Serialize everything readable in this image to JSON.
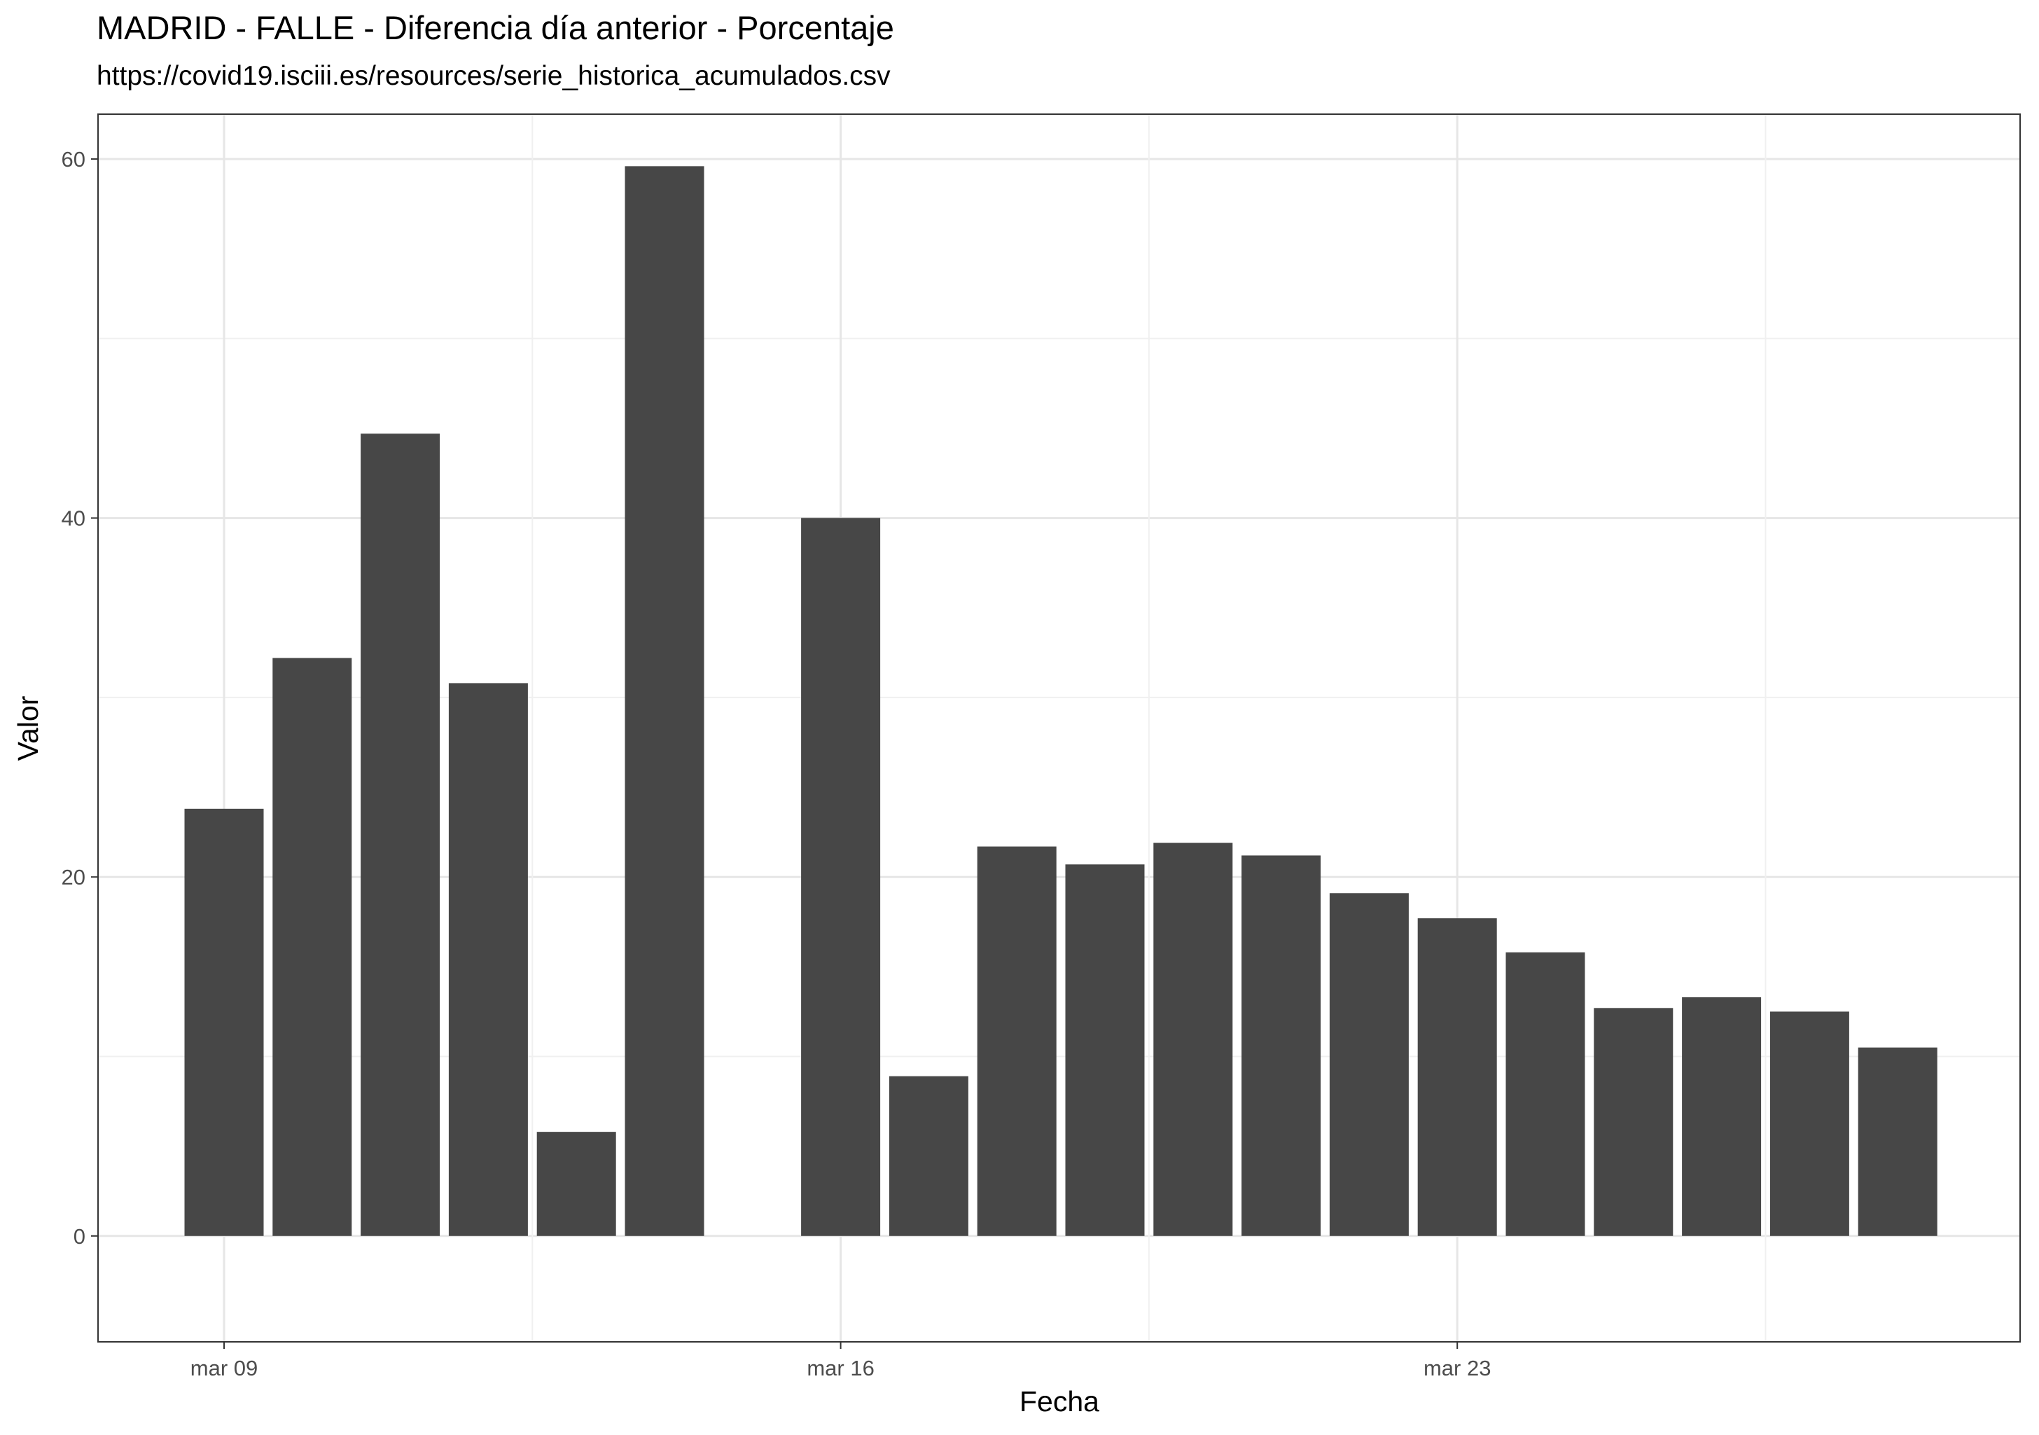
{
  "chart_data": {
    "type": "bar",
    "title": "MADRID - FALLE - Diferencia día anterior - Porcentaje",
    "subtitle": "https://covid19.isciii.es/resources/serie_historica_acumulados.csv",
    "xlabel": "Fecha",
    "ylabel": "Valor",
    "x_ticks": [
      "mar 09",
      "mar 16",
      "mar 23"
    ],
    "y_ticks": [
      0,
      20,
      40,
      60
    ],
    "ylim": [
      -5.9,
      62.5
    ],
    "grid": true,
    "categories": [
      "2020-03-09",
      "2020-03-10",
      "2020-03-11",
      "2020-03-12",
      "2020-03-13",
      "2020-03-14",
      "2020-03-15",
      "2020-03-16",
      "2020-03-17",
      "2020-03-18",
      "2020-03-19",
      "2020-03-20",
      "2020-03-21",
      "2020-03-22",
      "2020-03-23",
      "2020-03-24",
      "2020-03-25",
      "2020-03-26",
      "2020-03-27",
      "2020-03-28"
    ],
    "values": [
      23.8,
      32.2,
      44.7,
      30.8,
      5.8,
      59.6,
      null,
      40.0,
      8.9,
      21.7,
      20.7,
      21.9,
      21.2,
      19.1,
      17.7,
      15.8,
      12.7,
      13.3,
      12.5,
      10.5
    ],
    "bar_color": "#474747"
  }
}
